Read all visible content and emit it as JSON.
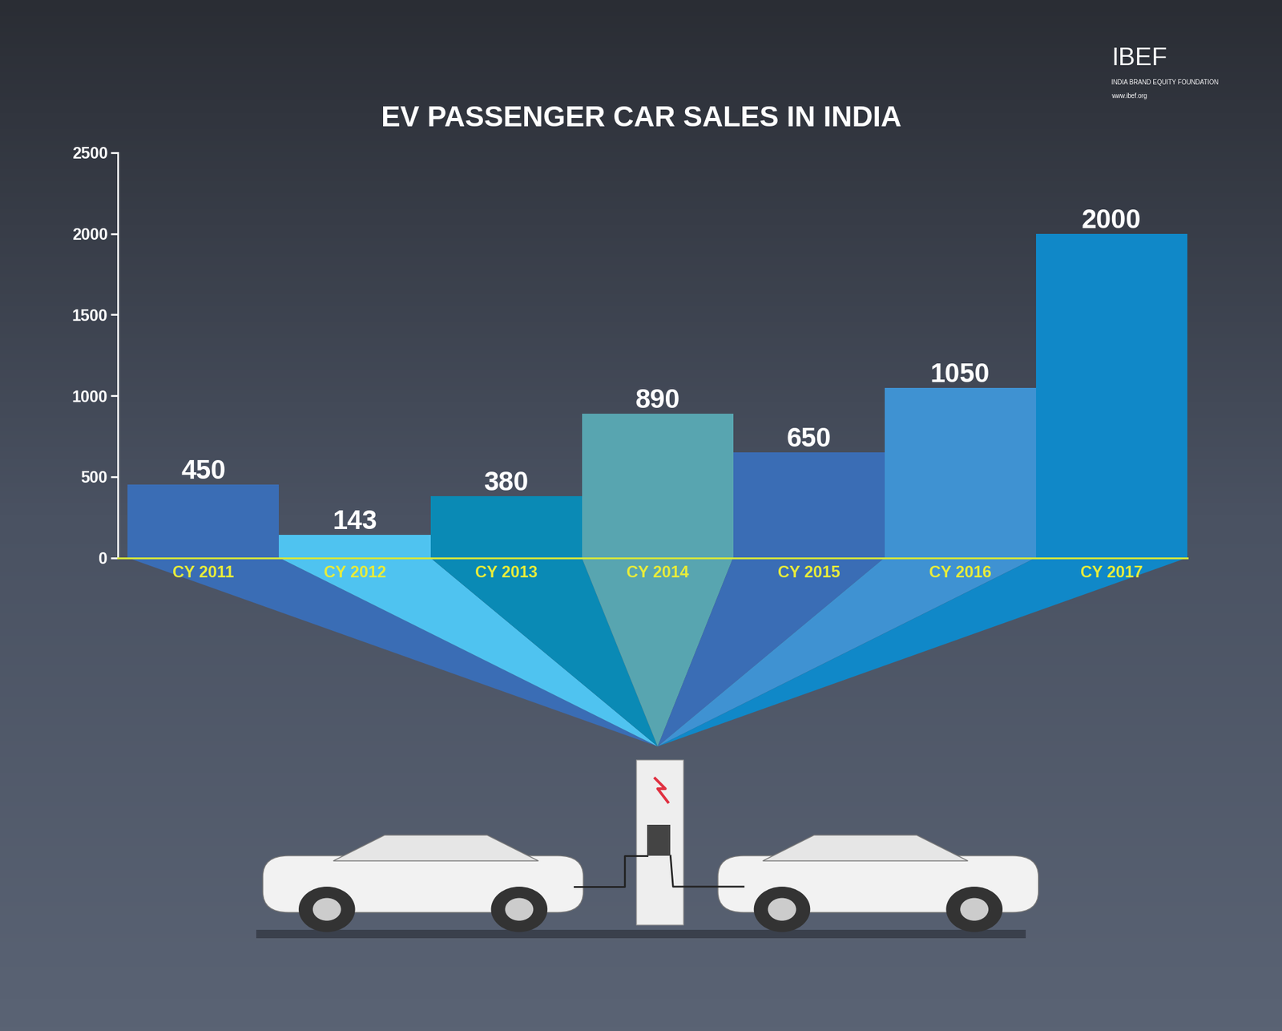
{
  "chart_data": {
    "type": "bar",
    "title": "EV PASSENGER CAR SALES IN INDIA",
    "categories": [
      "CY 2011",
      "CY 2012",
      "CY 2013",
      "CY 2014",
      "CY 2015",
      "CY 2016",
      "CY 2017"
    ],
    "values": [
      450,
      143,
      380,
      890,
      650,
      1050,
      2000
    ],
    "colors": [
      "#3a6db5",
      "#4fc3f0",
      "#0a8ab5",
      "#58a5b0",
      "#3a6db5",
      "#3f92d2",
      "#1088c8"
    ],
    "ylim": [
      0,
      2500
    ],
    "yticks": [
      0,
      500,
      1000,
      1500,
      2000,
      2500
    ],
    "grid": false,
    "data_labels": true
  },
  "logo": {
    "name": "IBEF",
    "subtitle": "INDIA BRAND EQUITY FOUNDATION",
    "url": "www.ibef.org"
  }
}
